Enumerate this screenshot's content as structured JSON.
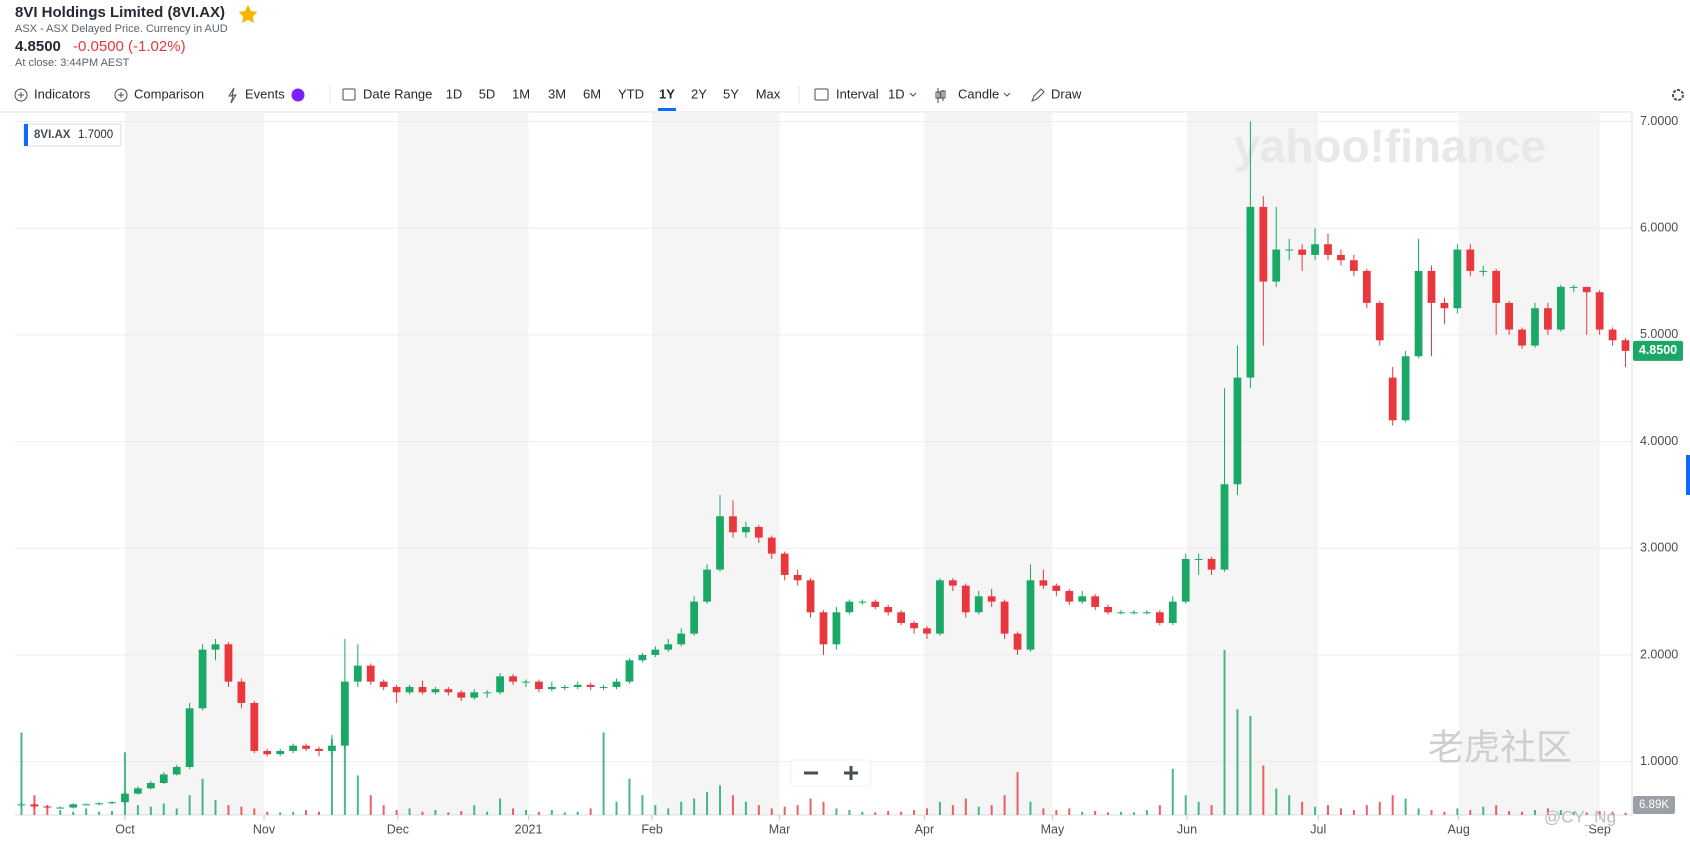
{
  "header": {
    "title": "8VI Holdings Limited (8VI.AX)",
    "subtitle": "ASX - ASX Delayed Price. Currency in AUD",
    "price": "4.8500",
    "change": "-0.0500 (-1.02%)",
    "close_time": "At close: 3:44PM AEST"
  },
  "toolbar": {
    "indicators": "Indicators",
    "comparison": "Comparison",
    "events": "Events",
    "date_range": "Date Range",
    "ranges": [
      "1D",
      "5D",
      "1M",
      "3M",
      "6M",
      "YTD",
      "1Y",
      "2Y",
      "5Y",
      "Max"
    ],
    "interval": "Interval",
    "interval_value": "1D",
    "chart_style": "Candle",
    "draw": "Draw"
  },
  "watermarks": {
    "brand": "yahoo!finance",
    "community": "老虎社区",
    "author": "@CY_Ng"
  },
  "chart_data": {
    "type": "candlestick",
    "legend": {
      "name": "8VI.AX",
      "value": "1.7000"
    },
    "volume_tag": "6.89K",
    "up_color": "#1aa866",
    "down_color": "#e8383d",
    "xlim": [
      -0.5,
      124.5
    ],
    "xticks": [
      {
        "value": 8,
        "label": "Oct"
      },
      {
        "value": 18.75,
        "label": "Nov"
      },
      {
        "value": 29.1,
        "label": "Dec"
      },
      {
        "value": 39.2,
        "label": "2021"
      },
      {
        "value": 48.75,
        "label": "Feb"
      },
      {
        "value": 58.6,
        "label": "Mar"
      },
      {
        "value": 69.8,
        "label": "Apr"
      },
      {
        "value": 79.7,
        "label": "May"
      },
      {
        "value": 90.1,
        "label": "Jun"
      },
      {
        "value": 100.25,
        "label": "Jul"
      },
      {
        "value": 111.1,
        "label": "Aug"
      },
      {
        "value": 122,
        "label": "Sep"
      }
    ],
    "ylim": [
      0.5,
      7.08
    ],
    "yticks": [
      {
        "value": 1,
        "label": "1.0000"
      },
      {
        "value": 2,
        "label": "2.0000"
      },
      {
        "value": 3,
        "label": "3.0000"
      },
      {
        "value": 4,
        "label": "4.0000"
      },
      {
        "value": 5,
        "label": "5.0000"
      },
      {
        "value": 6,
        "label": "6.0000"
      },
      {
        "value": 7,
        "label": "7.0000"
      }
    ],
    "grid": true,
    "open": [
      0.6,
      0.6,
      0.58,
      0.57,
      0.57,
      0.6,
      0.6,
      0.61,
      0.62,
      0.7,
      0.75,
      0.8,
      0.88,
      0.95,
      1.5,
      2.05,
      2.1,
      1.75,
      1.55,
      1.1,
      1.07,
      1.1,
      1.15,
      1.12,
      1.1,
      1.15,
      1.75,
      1.9,
      1.75,
      1.7,
      1.65,
      1.7,
      1.65,
      1.68,
      1.65,
      1.6,
      1.65,
      1.65,
      1.8,
      1.75,
      1.75,
      1.68,
      1.7,
      1.7,
      1.72,
      1.7,
      1.7,
      1.75,
      1.95,
      2.0,
      2.05,
      2.1,
      2.2,
      2.5,
      2.8,
      3.3,
      3.15,
      3.2,
      3.1,
      2.95,
      2.75,
      2.7,
      2.4,
      2.1,
      2.4,
      2.5,
      2.5,
      2.45,
      2.4,
      2.3,
      2.25,
      2.2,
      2.7,
      2.65,
      2.4,
      2.55,
      2.5,
      2.2,
      2.05,
      2.7,
      2.65,
      2.6,
      2.5,
      2.55,
      2.45,
      2.4,
      2.4,
      2.4,
      2.4,
      2.3,
      2.5,
      2.9,
      2.9,
      2.8,
      3.6,
      4.6,
      6.2,
      5.5,
      5.8,
      5.8,
      5.75,
      5.85,
      5.75,
      5.7,
      5.6,
      5.3,
      4.6,
      4.2,
      4.8,
      5.6,
      5.3,
      5.25,
      5.8,
      5.6,
      5.6,
      5.3,
      5.05,
      4.9,
      5.25,
      5.05,
      5.45,
      5.45,
      5.4,
      5.05,
      4.95
    ],
    "high": [
      0.62,
      0.61,
      0.59,
      0.58,
      0.61,
      0.61,
      0.62,
      0.63,
      0.72,
      0.77,
      0.82,
      0.9,
      0.97,
      1.55,
      2.1,
      2.15,
      2.12,
      1.78,
      1.57,
      1.12,
      1.12,
      1.17,
      1.17,
      1.14,
      1.25,
      2.15,
      2.1,
      1.92,
      1.77,
      1.72,
      1.72,
      1.76,
      1.7,
      1.7,
      1.67,
      1.68,
      1.67,
      1.83,
      1.82,
      1.77,
      1.77,
      1.75,
      1.72,
      1.75,
      1.74,
      1.72,
      1.78,
      1.97,
      2.02,
      2.08,
      2.15,
      2.25,
      2.55,
      2.85,
      3.5,
      3.45,
      3.25,
      3.22,
      3.12,
      2.97,
      2.8,
      2.72,
      2.42,
      2.45,
      2.52,
      2.52,
      2.52,
      2.47,
      2.42,
      2.32,
      2.27,
      2.72,
      2.72,
      2.67,
      2.6,
      2.62,
      2.52,
      2.22,
      2.85,
      2.8,
      2.67,
      2.62,
      2.6,
      2.57,
      2.47,
      2.42,
      2.42,
      2.42,
      2.42,
      2.55,
      2.95,
      2.95,
      2.92,
      4.5,
      4.9,
      7.0,
      6.3,
      6.2,
      5.9,
      5.85,
      6.0,
      5.95,
      5.8,
      5.75,
      5.62,
      5.32,
      4.7,
      4.85,
      5.9,
      5.65,
      5.35,
      5.85,
      5.85,
      5.65,
      5.62,
      5.32,
      5.07,
      5.3,
      5.3,
      5.47,
      5.47,
      5.45,
      5.42,
      5.07,
      4.97
    ],
    "low": [
      0.57,
      0.56,
      0.56,
      0.56,
      0.56,
      0.59,
      0.59,
      0.6,
      0.61,
      0.69,
      0.74,
      0.79,
      0.87,
      0.93,
      1.48,
      1.95,
      1.7,
      1.5,
      1.08,
      1.05,
      1.05,
      1.08,
      1.1,
      1.05,
      1.05,
      1.12,
      1.7,
      1.72,
      1.67,
      1.55,
      1.63,
      1.63,
      1.63,
      1.62,
      1.57,
      1.58,
      1.6,
      1.63,
      1.72,
      1.7,
      1.65,
      1.66,
      1.67,
      1.68,
      1.67,
      1.67,
      1.68,
      1.73,
      1.93,
      1.98,
      2.03,
      2.08,
      2.18,
      2.48,
      2.78,
      3.1,
      3.1,
      3.05,
      2.9,
      2.7,
      2.65,
      2.35,
      2.0,
      2.05,
      2.38,
      2.47,
      2.43,
      2.37,
      2.28,
      2.2,
      2.15,
      2.18,
      2.6,
      2.35,
      2.38,
      2.45,
      2.15,
      2.0,
      2.03,
      2.62,
      2.55,
      2.47,
      2.48,
      2.42,
      2.38,
      2.38,
      2.38,
      2.38,
      2.28,
      2.28,
      2.48,
      2.75,
      2.75,
      2.78,
      3.5,
      4.5,
      4.9,
      5.45,
      5.7,
      5.6,
      5.7,
      5.7,
      5.65,
      5.55,
      5.25,
      4.9,
      4.15,
      4.18,
      4.78,
      4.8,
      5.1,
      5.2,
      5.55,
      5.55,
      5.0,
      5.0,
      4.87,
      4.88,
      5.0,
      5.03,
      5.4,
      5.0,
      5.0,
      4.9,
      4.7
    ],
    "close": [
      0.6,
      0.58,
      0.57,
      0.57,
      0.6,
      0.6,
      0.61,
      0.62,
      0.7,
      0.75,
      0.8,
      0.88,
      0.95,
      1.5,
      2.05,
      2.1,
      1.75,
      1.55,
      1.1,
      1.07,
      1.1,
      1.15,
      1.12,
      1.1,
      1.15,
      1.75,
      1.9,
      1.75,
      1.7,
      1.65,
      1.7,
      1.65,
      1.68,
      1.65,
      1.6,
      1.65,
      1.65,
      1.8,
      1.75,
      1.75,
      1.68,
      1.7,
      1.7,
      1.72,
      1.7,
      1.7,
      1.75,
      1.95,
      2.0,
      2.05,
      2.1,
      2.2,
      2.5,
      2.8,
      3.3,
      3.15,
      3.2,
      3.1,
      2.95,
      2.75,
      2.7,
      2.4,
      2.1,
      2.4,
      2.5,
      2.5,
      2.45,
      2.4,
      2.3,
      2.25,
      2.2,
      2.7,
      2.65,
      2.4,
      2.55,
      2.5,
      2.2,
      2.05,
      2.7,
      2.65,
      2.6,
      2.5,
      2.55,
      2.45,
      2.4,
      2.4,
      2.4,
      2.4,
      2.3,
      2.5,
      2.9,
      2.9,
      2.8,
      3.6,
      4.6,
      6.2,
      5.5,
      5.8,
      5.8,
      5.75,
      5.85,
      5.75,
      5.7,
      5.6,
      5.3,
      4.95,
      4.2,
      4.8,
      5.6,
      5.3,
      5.25,
      5.8,
      5.6,
      5.6,
      5.3,
      5.05,
      4.9,
      5.25,
      5.05,
      5.45,
      5.45,
      5.4,
      5.05,
      4.95,
      4.85
    ],
    "volume": [
      250000,
      60000,
      30000,
      15000,
      10000,
      20000,
      10000,
      12000,
      190000,
      30000,
      25000,
      35000,
      20000,
      60000,
      110000,
      45000,
      30000,
      25000,
      20000,
      10000,
      8000,
      10000,
      15000,
      10000,
      230000,
      280000,
      120000,
      60000,
      30000,
      15000,
      20000,
      10000,
      15000,
      8000,
      12000,
      30000,
      10000,
      50000,
      20000,
      15000,
      10000,
      15000,
      8000,
      10000,
      20000,
      250000,
      40000,
      110000,
      60000,
      30000,
      20000,
      40000,
      50000,
      70000,
      90000,
      60000,
      40000,
      30000,
      20000,
      25000,
      30000,
      50000,
      40000,
      20000,
      15000,
      10000,
      8000,
      12000,
      10000,
      15000,
      20000,
      40000,
      30000,
      50000,
      25000,
      30000,
      60000,
      130000,
      40000,
      20000,
      15000,
      20000,
      10000,
      12000,
      8000,
      10000,
      8000,
      15000,
      30000,
      140000,
      60000,
      40000,
      30000,
      500000,
      320000,
      300000,
      150000,
      80000,
      60000,
      40000,
      25000,
      30000,
      20000,
      15000,
      30000,
      40000,
      60000,
      50000,
      20000,
      15000,
      10000,
      20000,
      15000,
      25000,
      30000,
      12000,
      10000,
      15000,
      20000,
      15000,
      10000,
      8000,
      12000,
      10000,
      6890
    ]
  }
}
